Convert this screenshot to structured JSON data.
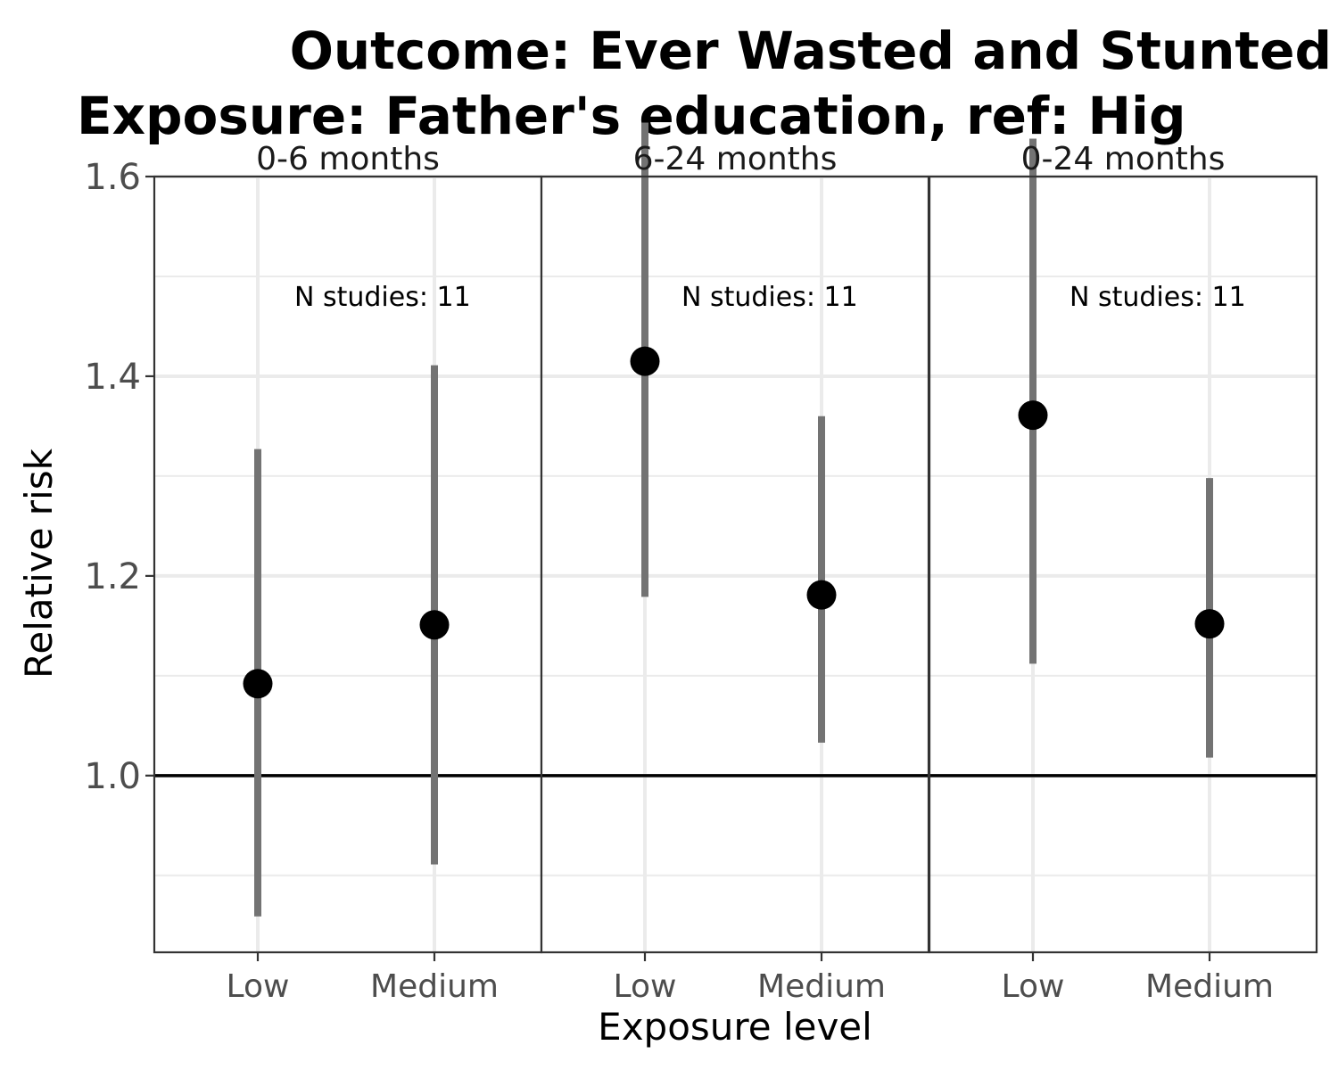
{
  "chart_data": {
    "type": "scatter",
    "title_lines": [
      "Outcome: Ever Wasted and Stunted",
      "Exposure: Father's education, ref: Hig"
    ],
    "xlabel": "Exposure level",
    "ylabel": "Relative risk",
    "ylim": [
      0.823,
      1.6
    ],
    "yticks": [
      1.0,
      1.2,
      1.4,
      1.6
    ],
    "ytick_labels": [
      "1.0",
      "1.2",
      "1.4",
      "1.6"
    ],
    "reference_line": 1.0,
    "grid": true,
    "categories": [
      "Low",
      "Medium"
    ],
    "panels": [
      {
        "label": "0-6 months",
        "annotation": "N studies: 11",
        "points": [
          {
            "category": "Low",
            "estimate": 1.092,
            "ci_lower": 0.859,
            "ci_upper": 1.327
          },
          {
            "category": "Medium",
            "estimate": 1.151,
            "ci_lower": 0.911,
            "ci_upper": 1.411
          }
        ]
      },
      {
        "label": "6-24 months",
        "annotation": "N studies: 11",
        "points": [
          {
            "category": "Low",
            "estimate": 1.415,
            "ci_lower": 1.179,
            "ci_upper": 1.654
          },
          {
            "category": "Medium",
            "estimate": 1.181,
            "ci_lower": 1.033,
            "ci_upper": 1.36
          }
        ]
      },
      {
        "label": "0-24 months",
        "annotation": "N studies: 11",
        "points": [
          {
            "category": "Low",
            "estimate": 1.361,
            "ci_lower": 1.112,
            "ci_upper": 1.638
          },
          {
            "category": "Medium",
            "estimate": 1.152,
            "ci_lower": 1.018,
            "ci_upper": 1.298
          }
        ]
      }
    ]
  }
}
